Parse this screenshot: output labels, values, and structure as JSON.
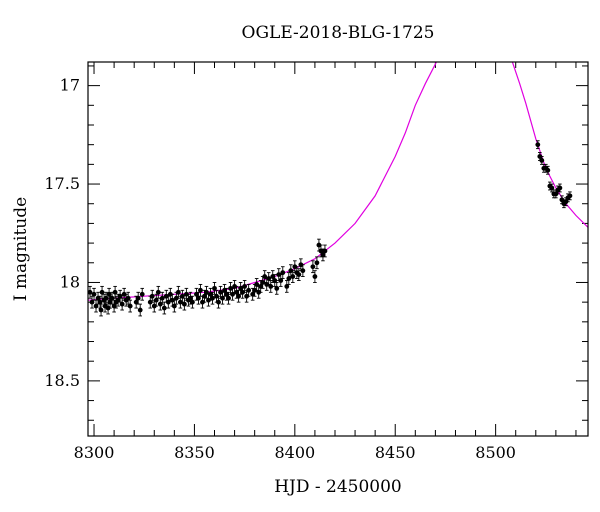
{
  "chart_data": {
    "type": "scatter",
    "title": "OGLE-2018-BLG-1725",
    "xlabel": "HJD - 2450000",
    "ylabel": "I magnitude",
    "xlim": [
      8297,
      8546
    ],
    "ylim": [
      18.78,
      16.88
    ],
    "y_inverted": true,
    "x_ticks": [
      8300,
      8350,
      8400,
      8450,
      8500
    ],
    "y_ticks": [
      17,
      17.5,
      18,
      18.5
    ],
    "grid": false,
    "legend": "none",
    "colors": {
      "points": "#000000",
      "model": "#e000e0"
    },
    "series": [
      {
        "kind": "points",
        "x": [
          8298,
          8299,
          8300,
          8301,
          8302,
          8303,
          8303.5,
          8304,
          8305,
          8305.5,
          8306,
          8307,
          8307.5,
          8308,
          8309,
          8310,
          8310.5,
          8311,
          8312,
          8313,
          8314,
          8315,
          8316,
          8317,
          8318,
          8321,
          8322,
          8323,
          8324,
          8328,
          8329,
          8330,
          8331,
          8332,
          8333,
          8334,
          8335,
          8336,
          8337,
          8338,
          8339,
          8340,
          8341,
          8342,
          8343,
          8344,
          8345,
          8346,
          8347,
          8348,
          8349,
          8351,
          8352,
          8353,
          8354,
          8355,
          8356,
          8357,
          8358,
          8359,
          8360,
          8361,
          8362,
          8363,
          8364,
          8365,
          8366,
          8367,
          8368,
          8369,
          8370,
          8371,
          8372,
          8373,
          8374,
          8375,
          8376,
          8377,
          8379,
          8380,
          8381,
          8382,
          8383,
          8384,
          8385,
          8386,
          8387,
          8388,
          8389,
          8390,
          8391,
          8392,
          8393,
          8394,
          8396,
          8397,
          8398,
          8399,
          8400,
          8401,
          8402,
          8403,
          8404,
          8409,
          8410,
          8411,
          8412,
          8413,
          8414,
          8415,
          8521,
          8522,
          8523,
          8524,
          8525,
          8526,
          8527,
          8528,
          8529,
          8530,
          8531,
          8532,
          8533,
          8534,
          8535,
          8536,
          8537
        ],
        "y": [
          18.05,
          18.1,
          18.06,
          18.12,
          18.08,
          18.1,
          18.14,
          18.05,
          18.09,
          18.12,
          18.08,
          18.13,
          18.06,
          18.1,
          18.08,
          18.12,
          18.05,
          18.1,
          18.09,
          18.07,
          18.11,
          18.06,
          18.09,
          18.08,
          18.12,
          18.1,
          18.08,
          18.14,
          18.06,
          18.1,
          18.07,
          18.12,
          18.09,
          18.05,
          18.11,
          18.08,
          18.13,
          18.07,
          18.1,
          18.06,
          18.09,
          18.12,
          18.08,
          18.05,
          18.1,
          18.07,
          18.11,
          18.06,
          18.09,
          18.08,
          18.1,
          18.06,
          18.08,
          18.04,
          18.1,
          18.07,
          18.05,
          18.09,
          18.06,
          18.08,
          18.03,
          18.07,
          18.1,
          18.05,
          18.08,
          18.04,
          18.06,
          18.08,
          18.03,
          18.06,
          18.02,
          18.05,
          18.07,
          18.03,
          18.05,
          18.02,
          18.07,
          18.04,
          18.06,
          18.04,
          18.01,
          18.05,
          18.02,
          18.0,
          17.97,
          18.01,
          17.98,
          18.02,
          17.97,
          17.99,
          18.03,
          17.96,
          17.99,
          17.95,
          18.02,
          17.98,
          17.94,
          17.97,
          17.92,
          17.95,
          17.96,
          17.91,
          17.94,
          17.92,
          17.97,
          17.9,
          17.81,
          17.84,
          17.86,
          17.84,
          17.3,
          17.36,
          17.38,
          17.42,
          17.42,
          17.43,
          17.51,
          17.52,
          17.55,
          17.55,
          17.53,
          17.52,
          17.58,
          17.6,
          17.59,
          17.57,
          17.56
        ],
        "yerr": [
          0.03,
          0.03,
          0.03,
          0.03,
          0.03,
          0.03,
          0.03,
          0.03,
          0.03,
          0.03,
          0.03,
          0.03,
          0.03,
          0.03,
          0.03,
          0.03,
          0.03,
          0.03,
          0.03,
          0.03,
          0.03,
          0.03,
          0.03,
          0.03,
          0.03,
          0.03,
          0.03,
          0.03,
          0.03,
          0.03,
          0.03,
          0.03,
          0.03,
          0.03,
          0.03,
          0.03,
          0.03,
          0.03,
          0.03,
          0.03,
          0.03,
          0.03,
          0.03,
          0.03,
          0.03,
          0.03,
          0.03,
          0.03,
          0.03,
          0.03,
          0.03,
          0.03,
          0.03,
          0.03,
          0.03,
          0.03,
          0.03,
          0.03,
          0.03,
          0.03,
          0.03,
          0.03,
          0.03,
          0.03,
          0.03,
          0.03,
          0.03,
          0.03,
          0.03,
          0.03,
          0.03,
          0.03,
          0.03,
          0.03,
          0.03,
          0.03,
          0.03,
          0.03,
          0.03,
          0.03,
          0.03,
          0.03,
          0.03,
          0.03,
          0.03,
          0.03,
          0.03,
          0.03,
          0.03,
          0.03,
          0.03,
          0.03,
          0.03,
          0.03,
          0.03,
          0.03,
          0.03,
          0.03,
          0.03,
          0.03,
          0.03,
          0.03,
          0.03,
          0.03,
          0.03,
          0.03,
          0.03,
          0.03,
          0.03,
          0.03,
          0.02,
          0.02,
          0.02,
          0.02,
          0.02,
          0.02,
          0.02,
          0.02,
          0.02,
          0.02,
          0.02,
          0.02,
          0.02,
          0.02,
          0.02,
          0.02,
          0.02
        ]
      },
      {
        "kind": "model",
        "x": [
          8297,
          8310,
          8325,
          8340,
          8355,
          8370,
          8380,
          8390,
          8400,
          8410,
          8420,
          8430,
          8440,
          8450,
          8455,
          8460,
          8465,
          8468,
          8470,
          8471,
          8508,
          8510,
          8512,
          8515,
          8520,
          8525,
          8530,
          8535,
          8540,
          8546
        ],
        "y": [
          18.09,
          18.08,
          18.07,
          18.06,
          18.05,
          18.03,
          18.0,
          17.97,
          17.93,
          17.88,
          17.8,
          17.7,
          17.56,
          17.36,
          17.24,
          17.1,
          16.99,
          16.93,
          16.89,
          16.87,
          16.87,
          16.93,
          16.99,
          17.09,
          17.27,
          17.42,
          17.52,
          17.6,
          17.66,
          17.72
        ]
      }
    ]
  }
}
